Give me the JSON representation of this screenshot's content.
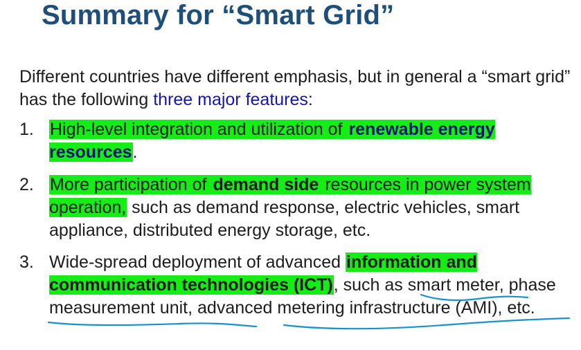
{
  "slide": {
    "title": "Summary for “Smart Grid”",
    "intro_part1": "Different countries have different emphasis, but in general a “smart grid” has the following ",
    "intro_emphasis": "three major features",
    "intro_end": ":",
    "items": [
      {
        "number": "1.",
        "hl1": "High-level integration and utilization of ",
        "hl1_bold": "renewable energy resources",
        "tail": "."
      },
      {
        "number": "2.",
        "hl1": "More participation of ",
        "bold": "demand side",
        "hl2": " resources in power system operation,",
        "tail": " such as demand response, electric vehicles, smart appliance, distributed energy storage, etc."
      },
      {
        "number": "3.",
        "lead": "Wide-spread deployment of advanced ",
        "hl_bold": "information and communication technologies (ICT)",
        "mid": ", such as ",
        "term1": "smart meter",
        "sep1": ", ",
        "term2": "phase measurement unit",
        "sep2": ", ",
        "term3": "advanced metering infrastructure",
        "tail": " (AMI), etc."
      }
    ]
  },
  "colors": {
    "title": "#1f4e79",
    "emphasis_blue": "#1515b0",
    "highlighter": "#16ec16",
    "pen_underline": "#1a8fd0"
  }
}
